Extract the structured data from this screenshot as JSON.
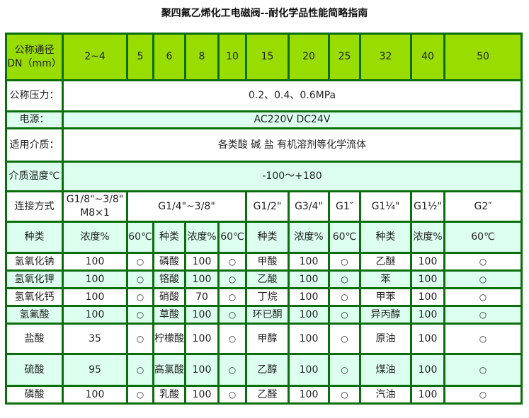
{
  "title": "聚四氟乙烯化工电磁阀--耐化学品性能简略指南",
  "dn": {
    "label": "公称通径DN（mm）",
    "values": [
      "2~4",
      "5",
      "6",
      "8",
      "10",
      "15",
      "20",
      "25",
      "32",
      "40",
      "50"
    ]
  },
  "pressure": {
    "label": "公称压力：",
    "value": "0.2、0.4、0.6MPa"
  },
  "power": {
    "label": "电源：",
    "value": "AC220V  DC24V"
  },
  "medium": {
    "label": "适用介质：",
    "value": "各类酸 碱 盐 有机溶剂等化学流体"
  },
  "temp": {
    "label": "介质温度℃",
    "value": "-100～+180"
  },
  "connection": {
    "label": "连接方式",
    "values": [
      "G1/8\"~3/8\" M8×1",
      "G1/4\"~3/8\"",
      "G1/2\"",
      "G3/4\"",
      "G1″",
      "G1¼\"",
      "G1½\"",
      "G2″"
    ]
  },
  "chem_header": [
    "种类",
    "浓度%",
    "60℃",
    "种类",
    "浓度%",
    "60℃",
    "种类",
    "浓度%",
    "60℃",
    "种类",
    "浓度%",
    "60℃"
  ],
  "chem_rows": [
    [
      "氢氧化钠",
      "100",
      "○",
      "磷酸",
      "100",
      "○",
      "甲酸",
      "100",
      "○",
      "乙醚",
      "100",
      "○"
    ],
    [
      "氢氧化钾",
      "100",
      "○",
      "铬酸",
      "100",
      "○",
      "乙酸",
      "100",
      "○",
      "苯",
      "100",
      "○"
    ],
    [
      "氢氧化钙",
      "100",
      "○",
      "硝酸",
      "70",
      "○",
      "丁烷",
      "100",
      "○",
      "甲苯",
      "100",
      "○"
    ],
    [
      "氢氟酸",
      "100",
      "○",
      "草酸",
      "100",
      "○",
      "环已酮",
      "100",
      "○",
      "异丙醇",
      "100",
      "○"
    ],
    [
      "盐酸",
      "35",
      "○",
      "柠檬酸",
      "100",
      "○",
      "甲醇",
      "100",
      "○",
      "原油",
      "100",
      "○"
    ],
    [
      "硫酸",
      "95",
      "○",
      "高氯酸",
      "100",
      "○",
      "乙醇",
      "100",
      "○",
      "煤油",
      "100",
      "○"
    ],
    [
      "磷酸",
      "100",
      "○",
      "乳酸",
      "100",
      "○",
      "乙醛",
      "100",
      "○",
      "汽油",
      "100",
      "○"
    ]
  ],
  "colors": {
    "header": "#99dd00",
    "border": "#0a6e0a",
    "alt_row": "#ddfff0"
  }
}
